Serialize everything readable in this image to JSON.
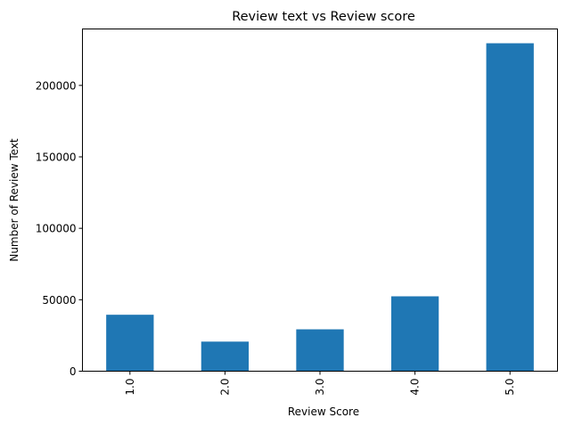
{
  "chart_data": {
    "type": "bar",
    "title": "Review text vs Review score",
    "xlabel": "Review Score",
    "ylabel": "Number of Review Text",
    "categories": [
      "1.0",
      "2.0",
      "3.0",
      "4.0",
      "5.0"
    ],
    "values": [
      39500,
      20700,
      29300,
      52400,
      229500
    ],
    "ylim": [
      0,
      239500
    ],
    "yticks": [
      0,
      50000,
      100000,
      150000,
      200000
    ],
    "ytick_labels": [
      "0",
      "50000",
      "100000",
      "150000",
      "200000"
    ],
    "bar_color": "#1f77b4",
    "xtick_rotation": "vertical",
    "grid": false,
    "legend": "none"
  }
}
